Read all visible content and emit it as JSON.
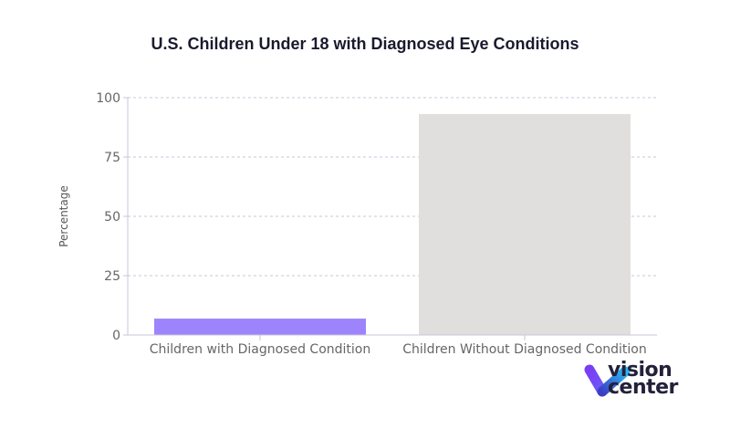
{
  "chart_data": {
    "type": "bar",
    "title": "U.S. Children Under 18 with Diagnosed Eye Conditions",
    "xlabel": "",
    "ylabel": "Percentage",
    "categories": [
      "Children with Diagnosed Condition",
      "Children Without Diagnosed Condition"
    ],
    "values": [
      6.9,
      93.1
    ],
    "colors": [
      "#9d84fc",
      "#e0dfdd"
    ],
    "ylim": [
      0,
      100
    ],
    "yticks": [
      0,
      25,
      50,
      75,
      100
    ],
    "grid": "horizontal dashed",
    "legend": "none"
  },
  "logo": {
    "text_line1": "vision",
    "text_line2": "center"
  }
}
